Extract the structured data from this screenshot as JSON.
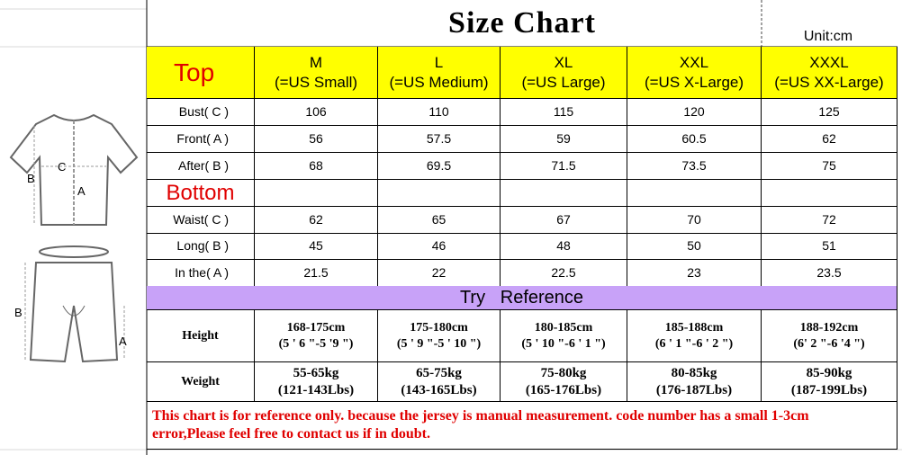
{
  "title": "Size Chart",
  "unit": "Unit:cm",
  "header": {
    "label": "Top",
    "sizes": [
      [
        "M",
        "(=US Small)"
      ],
      [
        "L",
        "(=US Medium)"
      ],
      [
        "XL",
        "(=US Large)"
      ],
      [
        "XXL",
        "(=US X-Large)"
      ],
      [
        "XXXL",
        "(=US XX-Large)"
      ]
    ]
  },
  "top_rows": [
    {
      "label": "Bust( C )",
      "values": [
        106,
        110,
        115,
        120,
        125
      ]
    },
    {
      "label": "Front( A )",
      "values": [
        56,
        57.5,
        59,
        60.5,
        62
      ]
    },
    {
      "label": "After( B )",
      "values": [
        68,
        69.5,
        71.5,
        73.5,
        75
      ]
    }
  ],
  "bottom_label": "Bottom",
  "bottom_rows": [
    {
      "label": "Waist( C )",
      "values": [
        62,
        65,
        67,
        70,
        72
      ]
    },
    {
      "label": "Long( B )",
      "values": [
        45,
        46,
        48,
        50,
        51
      ]
    },
    {
      "label": "In the( A )",
      "values": [
        21.5,
        22,
        22.5,
        23,
        23.5
      ]
    }
  ],
  "reference_title": "Try   Reference",
  "reference_rows": [
    {
      "label": "Height",
      "values": [
        [
          "168-175cm",
          "(5 ' 6 \"-5 '9 \")"
        ],
        [
          "175-180cm",
          "(5 ' 9 \"-5 ' 10 \")"
        ],
        [
          "180-185cm",
          "(5 ' 10 \"-6 ' 1 \")"
        ],
        [
          "185-188cm",
          "(6 ' 1 \"-6 ' 2 \")"
        ],
        [
          "188-192cm",
          "(6' 2 \"-6 '4 \")"
        ]
      ]
    },
    {
      "label": "Weight",
      "values": [
        [
          "55-65kg",
          "(121-143Lbs)"
        ],
        [
          "65-75kg",
          "(143-165Lbs)"
        ],
        [
          "75-80kg",
          "(165-176Lbs)"
        ],
        [
          "80-85kg",
          "(176-187Lbs)"
        ],
        [
          "85-90kg",
          "(187-199Lbs)"
        ]
      ]
    }
  ],
  "note": "This chart is for reference only. because the jersey is manual measurement. code number has a small 1-3cm error,Please feel free to contact us if in doubt.",
  "diagram": {
    "jersey": [
      "C",
      "B",
      "A"
    ],
    "shorts": [
      "B",
      "A"
    ]
  }
}
